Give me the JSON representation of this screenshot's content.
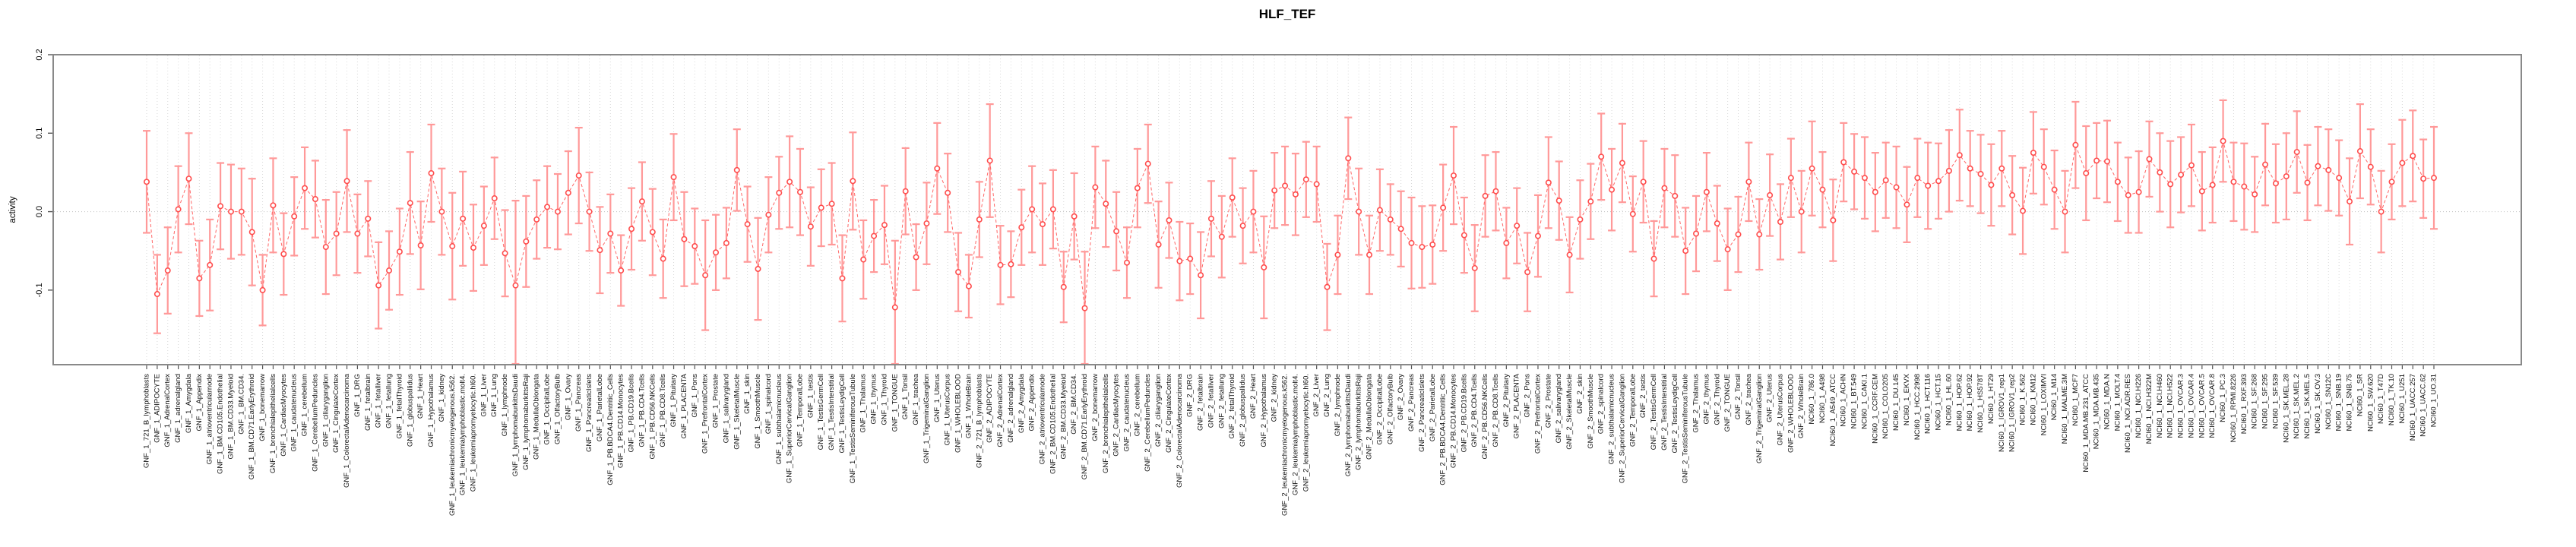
{
  "header": {
    "title": "HLF_TEF"
  },
  "chart_data": {
    "type": "scatter",
    "subtype": "point-estimates-with-error-bars",
    "title": "HLF_TEF",
    "xlabel": "",
    "ylabel": "activity",
    "ylim": [
      -0.195,
      0.2
    ],
    "yticks": [
      0.2,
      0.1,
      0.0,
      -0.1
    ],
    "ytick_labels": [
      "0.2",
      "0.1",
      "0.0",
      "-0.1"
    ],
    "grid": "vertical dotted line per category; dotted horizontal line at y=0",
    "legend_position": "none",
    "point_color": "#ff4d4d",
    "point_fill": "#ffffff",
    "errorbar_color": "#ff9999",
    "line_color": "#ff6666",
    "line_style": "dashed",
    "box_color": "#898989",
    "grid_color": "#d8d8d8",
    "zero_line_color": "#c0c0c0",
    "categories": [
      "GNF_1_721_B_lymphoblasts",
      "GNF_1_ADIPOCYTE",
      "GNF_1_AdrenalCortex",
      "GNF_1_adrenalgland",
      "GNF_1_Amygdala",
      "GNF_1_Appendix",
      "GNF_1_atrioventricularnode",
      "GNF_1_BM.CD105.Endothelial",
      "GNF_1_BM.CD33.Myeloid",
      "GNF_1_BM.CD34.",
      "GNF_1_BM.CD71.EarlyErythroid",
      "GNF_1_bonemarrow",
      "GNF_1_bronchialepithelialcells",
      "GNF_1_CardiacMyocytes",
      "GNF_1_caudatenucleus",
      "GNF_1_cerebellum",
      "GNF_1_CerebellumPeduncles",
      "GNF_1_ciliaryganglion",
      "GNF_1_CingulateCortex",
      "GNF_1_ColorectalAdenocarcinoma",
      "GNF_1_DRG",
      "GNF_1_fetalbrain",
      "GNF_1_fetalliver",
      "GNF_1_fetallung",
      "GNF_1_fetalThyroid",
      "GNF_1_globuspallidus",
      "GNF_1_Heart",
      "GNF_1_Hypothalamus",
      "GNF_1_kidney",
      "GNF_1_leukemiachronicmyelogenous.k562.",
      "GNF_1_leukemialymphoblastic.molt4.",
      "GNF_1_leukemiapromyelocytic.hl60.",
      "GNF_1_Liver",
      "GNF_1_Lung",
      "GNF_1_lymphnode",
      "GNF_1_lymphomaburkittsDaudi",
      "GNF_1_lymphomaburkittsRaji",
      "GNF_1_MedullaOblongata",
      "GNF_1_OccipitalLobe",
      "GNF_1_OlfactoryBulb",
      "GNF_1_Ovary",
      "GNF_1_Pancreas",
      "GNF_1_PancreaticIslets",
      "GNF_1_ParietalLobe",
      "GNF_1_PB.BDCA4.Dentritic_Cells",
      "GNF_1_PB.CD14.Monocytes",
      "GNF_1_PB.CD19.Bcells",
      "GNF_1_PB.CD4.Tcells",
      "GNF_1_PB.CD56.NKCells",
      "GNF_1_PB.CD8.Tcells",
      "GNF_1_Pituitary",
      "GNF_1_PLACENTA",
      "GNF_1_Pons",
      "GNF_1_PrefrontalCortex",
      "GNF_1_Prostate",
      "GNF_1_salivarygland",
      "GNF_1_SkeletalMuscle",
      "GNF_1_skin",
      "GNF_1_SmoothMuscle",
      "GNF_1_spinalcord",
      "GNF_1_subthalamicnucleus",
      "GNF_1_SuperiorCervicalGanglion",
      "GNF_1_TemporalLobe",
      "GNF_1_testis",
      "GNF_1_TestisGermCell",
      "GNF_1_TestisInterstitial",
      "GNF_1_TestisLeydigCell",
      "GNF_1_TestisSeminiferousTubule",
      "GNF_1_Thalamus",
      "GNF_1_thymus",
      "GNF_1_Thyroid",
      "GNF_1_TONGUE",
      "GNF_1_Tonsil",
      "GNF_1_trachea",
      "GNF_1_TrigeminalGanglion",
      "GNF_1_Uterus",
      "GNF_1_UterusCorpus",
      "GNF_1_WHOLEBLOOD",
      "GNF_1_WholeBrain",
      "GNF_2_721_B_lymphoblasts",
      "GNF_2_ADIPOCYTE",
      "GNF_2_AdrenalCortex",
      "GNF_2_adrenalgland",
      "GNF_2_Amygdala",
      "GNF_2_Appendix",
      "GNF_2_atrioventricularnode",
      "GNF_2_BM.CD105.Endothelial",
      "GNF_2_BM.CD33.Myeloid",
      "GNF_2_BM.CD34.",
      "GNF_2_BM.CD71.EarlyErythroid",
      "GNF_2_bonemarrow",
      "GNF_2_bronchialepithelialcells",
      "GNF_2_CardiacMyocytes",
      "GNF_2_caudatenucleus",
      "GNF_2_cerebellum",
      "GNF_2_CerebellumPeduncles",
      "GNF_2_ciliaryganglion",
      "GNF_2_CingulateCortex",
      "GNF_2_ColorectalAdenocarcinoma",
      "GNF_2_DRG",
      "GNF_2_fetalbrain",
      "GNF_2_fetalliver",
      "GNF_2_fetallung",
      "GNF_2_fetalThyroid",
      "GNF_2_globuspallidus",
      "GNF_2_Heart",
      "GNF_2_Hypothalamus",
      "GNF_2_kidney",
      "GNF_2_leukemiachronicmyelogenous.k562.",
      "GNF_2_leukemialymphoblastic.molt4.",
      "GNF_2_leukemiapromyelocytic.hl60.",
      "GNF_2_Liver",
      "GNF_2_Lung",
      "GNF_2_lymphnode",
      "GNF_2_lymphomaburkittsDaudi",
      "GNF_2_lymphomaburkittsRaji",
      "GNF_2_MedullaOblongata",
      "GNF_2_OccipitalLobe",
      "GNF_2_OlfactoryBulb",
      "GNF_2_Ovary",
      "GNF_2_Pancreas",
      "GNF_2_PancreaticIslets",
      "GNF_2_ParietalLobe",
      "GNF_2_PB.BDCA4.Dentritic_Cells",
      "GNF_2_PB.CD14.Monocytes",
      "GNF_2_PB.CD19.Bcells",
      "GNF_2_PB.CD4.Tcells",
      "GNF_2_PB.CD56.NKCells",
      "GNF_2_PB.CD8.Tcells",
      "GNF_2_Pituitary",
      "GNF_2_PLACENTA",
      "GNF_2_Pons",
      "GNF_2_PrefrontalCortex",
      "GNF_2_Prostate",
      "GNF_2_salivarygland",
      "GNF_2_SkeletalMuscle",
      "GNF_2_skin",
      "GNF_2_SmoothMuscle",
      "GNF_2_spinalcord",
      "GNF_2_subthalamicnucleus",
      "GNF_2_SuperiorCervicalGanglion",
      "GNF_2_TemporalLobe",
      "GNF_2_testis",
      "GNF_2_TestisGermCell",
      "GNF_2_TestisInterstitial",
      "GNF_2_TestisLeydigCell",
      "GNF_2_TestisSeminiferousTubule",
      "GNF_2_Thalamus",
      "GNF_2_thymus",
      "GNF_2_Thyroid",
      "GNF_2_TONGUE",
      "GNF_2_Tonsil",
      "GNF_2_trachea",
      "GNF_2_TrigeminalGanglion",
      "GNF_2_Uterus",
      "GNF_2_UterusCorpus",
      "GNF_2_WHOLEBLOOD",
      "GNF_2_WholeBrain",
      "NCI60_1_786.0",
      "NCI60_1_A498",
      "NCI60_1_A549_ATCC",
      "NCI60_1_ACHN",
      "NCI60_1_BT.549",
      "NCI60_1_CAKI.1",
      "NCI60_1_CCRF.CEM",
      "NCI60_1_COLO205",
      "NCI60_1_DU.145",
      "NCI60_1_EKVX",
      "NCI60_1_HCC.2998",
      "NCI60_1_HCT.116",
      "NCI60_1_HCT.15",
      "NCI60_1_HL.60",
      "NCI60_1_HOP.62",
      "NCI60_1_HOP.92",
      "NCI60_1_HS578T",
      "NCI60_1_HT29",
      "NCI60_1_IGROV1_rep1",
      "NCI60_1_IGROV1_rep2",
      "NCI60_1_K.562",
      "NCI60_1_KM12",
      "NCI60_1_LOXIMVI",
      "NCI60_1_M14",
      "NCI60_1_MALME.3M",
      "NCI60_1_MCF7",
      "NCI60_1_MDA.MB.231_ATCC",
      "NCI60_1_MDA.MB.435",
      "NCI60_1_MDA.N",
      "NCI60_1_MOLT.4",
      "NCI60_1_NCI.ADR.RES",
      "NCI60_1_NCI.H226",
      "NCI60_1_NCI.H322M",
      "NCI60_1_NCI.H460",
      "NCI60_1_NCI.H522",
      "NCI60_1_OVCAR.3",
      "NCI60_1_OVCAR.4",
      "NCI60_1_OVCAR.5",
      "NCI60_1_OVCAR.8",
      "NCI60_1_PC.3",
      "NCI60_1_RPMI.8226",
      "NCI60_1_RXF.393",
      "NCI60_1_SF.268",
      "NCI60_1_SF.295",
      "NCI60_1_SF.539",
      "NCI60_1_SK.MEL.28",
      "NCI60_1_SK.MEL.2",
      "NCI60_1_SK.MEL.5",
      "NCI60_1_SK.OV.3",
      "NCI60_1_SN12C",
      "NCI60_1_SNB.19",
      "NCI60_1_SNB.75",
      "NCI60_1_SR",
      "NCI60_1_SW.620",
      "NCI60_1_T47D",
      "NCI60_1_TK.10",
      "NCI60_1_U251",
      "NCI60_1_UACC.257",
      "NCI60_1_UACC.62",
      "NCI60_1_UO.31"
    ],
    "values": [
      0.038,
      -0.105,
      -0.075,
      0.003,
      0.042,
      -0.085,
      -0.068,
      0.007,
      0.0,
      0.0,
      -0.026,
      -0.1,
      0.008,
      -0.054,
      -0.006,
      0.03,
      0.016,
      -0.045,
      -0.028,
      0.039,
      -0.028,
      -0.009,
      -0.094,
      -0.075,
      -0.051,
      0.011,
      -0.043,
      0.049,
      0.0,
      -0.044,
      -0.009,
      -0.046,
      -0.018,
      0.017,
      -0.053,
      -0.094,
      -0.038,
      -0.01,
      0.006,
      0.0,
      0.024,
      0.046,
      0.0,
      -0.049,
      -0.028,
      -0.075,
      -0.022,
      0.013,
      -0.026,
      -0.06,
      0.044,
      -0.035,
      -0.044,
      -0.081,
      -0.052,
      -0.04,
      0.053,
      -0.016,
      -0.073,
      -0.004,
      0.024,
      0.038,
      0.025,
      -0.019,
      0.005,
      0.01,
      -0.085,
      0.039,
      -0.061,
      -0.031,
      -0.017,
      -0.122,
      0.026,
      -0.058,
      -0.015,
      0.055,
      0.024,
      -0.077,
      -0.095,
      -0.01,
      0.065,
      -0.068,
      -0.067,
      -0.02,
      0.003,
      -0.016,
      0.003,
      -0.096,
      -0.006,
      -0.123,
      0.031,
      0.01,
      -0.025,
      -0.065,
      0.03,
      0.061,
      -0.042,
      -0.011,
      -0.063,
      -0.06,
      -0.081,
      -0.009,
      -0.032,
      0.018,
      -0.018,
      0.0,
      -0.071,
      0.027,
      0.033,
      0.022,
      0.041,
      0.035,
      -0.096,
      -0.055,
      0.068,
      0.0,
      -0.055,
      0.002,
      -0.01,
      -0.022,
      -0.04,
      -0.045,
      -0.042,
      0.005,
      0.046,
      -0.03,
      -0.072,
      0.02,
      0.026,
      -0.04,
      -0.018,
      -0.077,
      -0.031,
      0.037,
      0.014,
      -0.055,
      -0.01,
      0.013,
      0.07,
      0.028,
      0.062,
      -0.003,
      0.038,
      -0.06,
      0.03,
      0.02,
      -0.05,
      -0.028,
      0.025,
      -0.015,
      -0.048,
      -0.029,
      0.038,
      -0.029,
      0.021,
      -0.013,
      0.043,
      0.0,
      0.055,
      0.028,
      -0.011,
      0.063,
      0.051,
      0.043,
      0.025,
      0.04,
      0.031,
      0.009,
      0.043,
      0.033,
      0.039,
      0.052,
      0.072,
      0.055,
      0.048,
      0.034,
      0.055,
      0.021,
      0.001,
      0.075,
      0.057,
      0.028,
      0.0,
      0.085,
      0.049,
      0.065,
      0.064,
      0.038,
      0.021,
      0.025,
      0.067,
      0.05,
      0.035,
      0.047,
      0.059,
      0.026,
      0.034,
      0.09,
      0.038,
      0.032,
      0.022,
      0.06,
      0.036,
      0.045,
      0.076,
      0.037,
      0.058,
      0.053,
      0.043,
      0.013,
      0.077,
      0.057,
      0.0,
      0.038,
      0.062,
      0.071,
      0.042,
      0.043
    ],
    "errors": [
      0.065,
      0.05,
      0.055,
      0.055,
      0.058,
      0.048,
      0.058,
      0.055,
      0.06,
      0.055,
      0.068,
      0.045,
      0.06,
      0.052,
      0.05,
      0.052,
      0.049,
      0.06,
      0.053,
      0.065,
      0.05,
      0.048,
      0.055,
      0.05,
      0.055,
      0.065,
      0.056,
      0.062,
      0.055,
      0.068,
      0.06,
      0.055,
      0.05,
      0.052,
      0.055,
      0.108,
      0.058,
      0.05,
      0.052,
      0.048,
      0.053,
      0.061,
      0.05,
      0.055,
      0.05,
      0.045,
      0.052,
      0.05,
      0.055,
      0.05,
      0.055,
      0.06,
      0.048,
      0.07,
      0.048,
      0.045,
      0.052,
      0.048,
      0.065,
      0.048,
      0.046,
      0.058,
      0.055,
      0.05,
      0.049,
      0.052,
      0.055,
      0.062,
      0.05,
      0.046,
      0.05,
      0.085,
      0.055,
      0.042,
      0.052,
      0.058,
      0.05,
      0.05,
      0.04,
      0.048,
      0.072,
      0.05,
      0.042,
      0.048,
      0.055,
      0.052,
      0.05,
      0.045,
      0.055,
      0.072,
      0.052,
      0.055,
      0.05,
      0.045,
      0.05,
      0.05,
      0.055,
      0.048,
      0.05,
      0.045,
      0.055,
      0.048,
      0.052,
      0.05,
      0.048,
      0.052,
      0.065,
      0.048,
      0.05,
      0.052,
      0.048,
      0.048,
      0.055,
      0.05,
      0.052,
      0.055,
      0.05,
      0.052,
      0.045,
      0.048,
      0.058,
      0.052,
      0.05,
      0.055,
      0.062,
      0.048,
      0.055,
      0.052,
      0.05,
      0.045,
      0.048,
      0.05,
      0.052,
      0.058,
      0.05,
      0.048,
      0.05,
      0.048,
      0.055,
      0.052,
      0.05,
      0.048,
      0.052,
      0.048,
      0.05,
      0.052,
      0.055,
      0.048,
      0.05,
      0.048,
      0.052,
      0.048,
      0.05,
      0.045,
      0.052,
      0.048,
      0.05,
      0.052,
      0.06,
      0.048,
      0.052,
      0.05,
      0.048,
      0.052,
      0.05,
      0.048,
      0.052,
      0.048,
      0.05,
      0.055,
      0.048,
      0.052,
      0.058,
      0.048,
      0.05,
      0.052,
      0.048,
      0.05,
      0.055,
      0.052,
      0.048,
      0.05,
      0.052,
      0.055,
      0.06,
      0.048,
      0.052,
      0.05,
      0.048,
      0.052,
      0.048,
      0.05,
      0.055,
      0.048,
      0.052,
      0.05,
      0.048,
      0.052,
      0.05,
      0.055,
      0.048,
      0.052,
      0.05,
      0.055,
      0.052,
      0.048,
      0.05,
      0.052,
      0.048,
      0.055,
      0.06,
      0.048,
      0.052,
      0.048,
      0.055,
      0.058,
      0.05,
      0.065
    ]
  }
}
